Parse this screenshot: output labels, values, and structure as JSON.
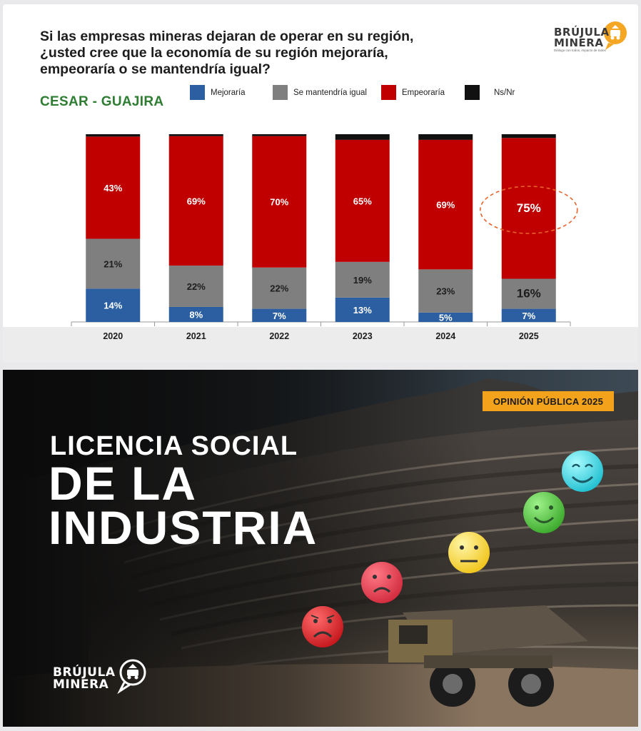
{
  "top": {
    "question": "Si las empresas mineras dejaran de operar en su región,\n¿usted cree que la economía de su región mejoraría,\nempeoraría o se mantendría igual?",
    "region": "CESAR - GUAJIRA",
    "logo": {
      "line1": "BRÚJULA",
      "line2": "MINERA",
      "tagline": "Diálogo con todos, impacto de todos"
    }
  },
  "colors": {
    "mejoraria": "#2b5fa1",
    "igual": "#7f7f7f",
    "empeoraria": "#c00000",
    "nsnr": "#111111",
    "highlight": "#e8632a",
    "badge": "#f2a21b"
  },
  "chart_data": {
    "type": "bar",
    "stacked": true,
    "categories": [
      "2020",
      "2021",
      "2022",
      "2023",
      "2024",
      "2025"
    ],
    "series": [
      {
        "name": "Mejoraría",
        "values": [
          14,
          8,
          7,
          13,
          5,
          7
        ],
        "labels": [
          "14%",
          "8%",
          "7%",
          "13%",
          "5%",
          "7%"
        ]
      },
      {
        "name": "Se mantendría igual",
        "values": [
          21,
          22,
          22,
          19,
          23,
          16
        ],
        "labels": [
          "21%",
          "22%",
          "22%",
          "19%",
          "23%",
          "16%"
        ]
      },
      {
        "name": "Empeoraría",
        "values": [
          43,
          69,
          70,
          65,
          69,
          75
        ],
        "labels": [
          "43%",
          "69%",
          "70%",
          "65%",
          "69%",
          "75%"
        ]
      },
      {
        "name": "Ns/Nr",
        "values": [
          1,
          1,
          1,
          3,
          3,
          2
        ],
        "labels": [
          "",
          "",
          "",
          "",
          "",
          ""
        ]
      }
    ],
    "legend_position": "top",
    "highlighted_value": "75%",
    "title": "",
    "xlabel": "",
    "ylabel": "",
    "grid": false
  },
  "bottom": {
    "badge": "OPINIÓN PÚBLICA 2025",
    "headline_line1": "LICENCIA SOCIAL",
    "headline_line2": "DE LA\nINDUSTRIA",
    "logo": {
      "line1": "BRÚJULA",
      "line2": "MINERA"
    },
    "emojis": [
      "very-unhappy-face-icon",
      "unhappy-face-icon",
      "neutral-face-icon",
      "happy-face-icon",
      "very-happy-face-icon"
    ]
  }
}
